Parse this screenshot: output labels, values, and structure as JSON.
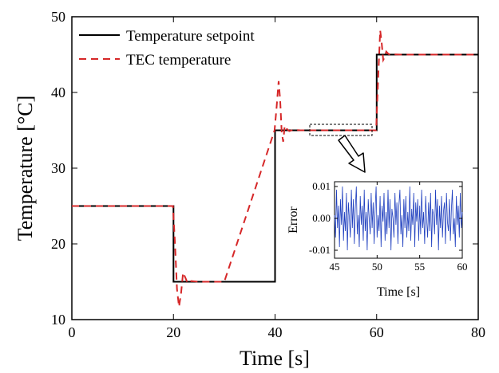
{
  "chart_data": [
    {
      "type": "line",
      "title": "",
      "xlabel": "Time [s]",
      "ylabel": "Temperature [°C]",
      "xlim": [
        0,
        80
      ],
      "ylim": [
        10,
        50
      ],
      "xticks": [
        0,
        20,
        40,
        60,
        80
      ],
      "yticks": [
        10,
        20,
        30,
        40,
        50
      ],
      "grid": false,
      "legend_position": "top-left",
      "series": [
        {
          "name": "Temperature setpoint",
          "color": "#000000",
          "style": "solid",
          "x": [
            0,
            20,
            20,
            40,
            40,
            60,
            60,
            80
          ],
          "y": [
            25,
            25,
            15,
            15,
            35,
            35,
            45,
            45
          ]
        },
        {
          "name": "TEC temperature",
          "color": "#d62728",
          "style": "dashed",
          "x": [
            0,
            19.9,
            20.3,
            20.7,
            21.1,
            21.5,
            21.9,
            22.3,
            22.8,
            23.5,
            25,
            30,
            39.9,
            40.3,
            40.7,
            41.0,
            41.3,
            41.6,
            41.9,
            42.3,
            42.8,
            43.5,
            45,
            50,
            59.9,
            60.3,
            60.7,
            61.0,
            61.3,
            61.6,
            61.9,
            62.3,
            62.8,
            63.5,
            65,
            70,
            80
          ],
          "y": [
            25,
            25,
            20,
            14,
            11.7,
            13.5,
            16.2,
            15.6,
            14.8,
            15.1,
            15,
            15,
            35,
            38,
            41.5,
            39,
            34.8,
            33.5,
            35.6,
            35.2,
            34.9,
            35.05,
            35,
            35,
            35,
            42,
            48.2,
            46.5,
            44.3,
            44.7,
            45.4,
            45.1,
            44.95,
            45.02,
            45,
            45,
            45
          ]
        }
      ]
    },
    {
      "type": "line",
      "title": "",
      "xlabel": "Time [s]",
      "ylabel": "Error",
      "xlim": [
        45,
        60
      ],
      "ylim": [
        -0.0125,
        0.0115
      ],
      "xticks": [
        45,
        50,
        55,
        60
      ],
      "yticks": [
        -0.01,
        0.0,
        0.01
      ],
      "grid": false,
      "series": [
        {
          "color": "#1f3fbf",
          "style": "solid",
          "x_start": 45,
          "x_end": 60,
          "y": [
            0.001,
            -0.006,
            0.009,
            -0.003,
            0.004,
            -0.009,
            0.006,
            -0.002,
            0.01,
            -0.007,
            0.002,
            -0.004,
            0.008,
            -0.01,
            0.005,
            0.0,
            -0.006,
            0.009,
            -0.003,
            0.006,
            -0.008,
            0.003,
            0.01,
            -0.005,
            0.001,
            -0.009,
            0.007,
            -0.002,
            0.004,
            -0.007,
            0.009,
            -0.004,
            0.002,
            -0.01,
            0.006,
            0.0,
            -0.005,
            0.008,
            -0.003,
            0.005,
            -0.008,
            0.003,
            0.01,
            -0.006,
            0.001,
            -0.004,
            0.007,
            -0.009,
            0.004,
            -0.001,
            0.008,
            -0.007,
            0.002,
            -0.005,
            0.009,
            -0.003,
            0.006,
            -0.01,
            0.003,
            0.0,
            -0.006,
            0.008,
            -0.002,
            0.005,
            -0.008,
            0.004,
            0.009,
            -0.005,
            0.001,
            -0.009,
            0.006,
            -0.003,
            0.007,
            -0.006,
            0.002,
            -0.004,
            0.01,
            -0.007,
            0.003,
            -0.002,
            0.008,
            -0.009,
            0.005,
            -0.001,
            0.006,
            -0.007,
            0.004,
            -0.005,
            0.009,
            -0.003,
            0.002,
            -0.008,
            0.007,
            0.0,
            -0.006,
            0.005,
            -0.004,
            0.008,
            -0.009,
            0.003,
            0.001,
            -0.005,
            0.009,
            -0.002,
            0.006,
            -0.01,
            0.004,
            -0.003,
            0.007,
            -0.006,
            0.002,
            0.005,
            -0.008,
            0.008,
            -0.001,
            -0.004,
            0.006,
            -0.007,
            0.003,
            0.009,
            -0.005,
            0.0,
            -0.009,
            0.007,
            -0.002,
            0.004,
            -0.006,
            0.008,
            -0.003,
            0.002
          ]
        }
      ]
    }
  ]
}
